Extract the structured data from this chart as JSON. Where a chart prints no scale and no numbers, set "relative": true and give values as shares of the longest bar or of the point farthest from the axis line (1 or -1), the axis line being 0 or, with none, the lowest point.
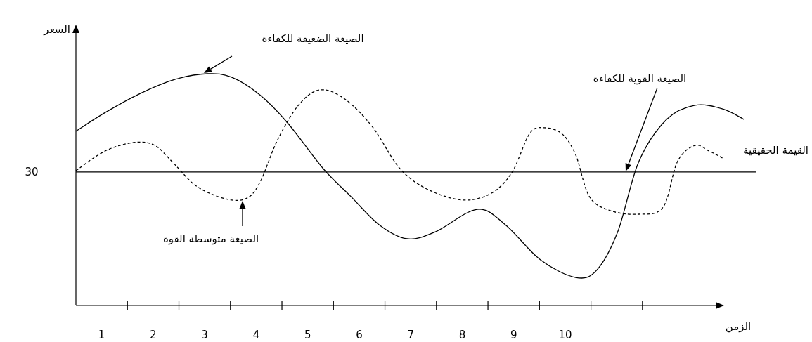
{
  "chart_data": {
    "type": "line",
    "relative": true,
    "xlabel": "الزمن",
    "ylabel": "السعر",
    "xlim": [
      0.5,
      13.7
    ],
    "xticks": [
      {
        "value": 1,
        "label": "1"
      },
      {
        "value": 2,
        "label": "2"
      },
      {
        "value": 3,
        "label": "3"
      },
      {
        "value": 4,
        "label": "4"
      },
      {
        "value": 5,
        "label": "5"
      },
      {
        "value": 6,
        "label": "6"
      },
      {
        "value": 7,
        "label": "7"
      },
      {
        "value": 8,
        "label": "8"
      },
      {
        "value": 9,
        "label": "9"
      },
      {
        "value": 10,
        "label": "10"
      },
      {
        "value": 1.5,
        "label": null
      },
      {
        "value": 2.5,
        "label": null
      },
      {
        "value": 3.5,
        "label": null
      },
      {
        "value": 4.5,
        "label": null
      },
      {
        "value": 5.5,
        "label": null
      },
      {
        "value": 6.5,
        "label": null
      },
      {
        "value": 7.5,
        "label": null
      },
      {
        "value": 8.5,
        "label": null
      },
      {
        "value": 9.5,
        "label": null
      },
      {
        "value": 10.5,
        "label": null
      },
      {
        "value": 11.5,
        "label": null
      }
    ],
    "series": [
      {
        "color": "#000000",
        "line_style": "solid",
        "x": [
          0.5,
          1.07,
          1.75,
          2.43,
          3.05,
          3.52,
          4.07,
          4.61,
          5.3,
          5.84,
          6.39,
          6.93,
          7.48,
          8.29,
          8.84,
          9.52,
          10.2,
          10.61,
          11.02,
          11.43,
          11.97,
          12.52,
          13.06,
          13.47
        ],
        "values": [
          0.752,
          0.833,
          0.915,
          0.976,
          1.0,
          0.985,
          0.909,
          0.788,
          0.591,
          0.47,
          0.348,
          0.288,
          0.318,
          0.415,
          0.348,
          0.197,
          0.121,
          0.152,
          0.318,
          0.621,
          0.803,
          0.864,
          0.848,
          0.803
        ]
      },
      {
        "color": "#000000",
        "line_style": "dashed",
        "x": [
          0.5,
          1.07,
          1.62,
          2.03,
          2.43,
          2.84,
          3.39,
          3.8,
          4.07,
          4.41,
          4.82,
          5.23,
          5.7,
          6.25,
          6.79,
          7.34,
          8.02,
          8.57,
          8.97,
          9.31,
          9.59,
          9.93,
          10.2,
          10.47,
          10.88,
          11.43,
          11.9,
          12.18,
          12.52,
          12.79,
          13.06
        ],
        "values": [
          0.582,
          0.667,
          0.703,
          0.691,
          0.606,
          0.515,
          0.461,
          0.461,
          0.53,
          0.712,
          0.864,
          0.93,
          0.894,
          0.773,
          0.591,
          0.5,
          0.455,
          0.485,
          0.576,
          0.742,
          0.767,
          0.742,
          0.652,
          0.47,
          0.409,
          0.394,
          0.424,
          0.621,
          0.691,
          0.667,
          0.636
        ]
      }
    ],
    "ref_lines": [
      {
        "axis": "y",
        "value": 0.576,
        "label": "القيمة الحقيقية",
        "color": "#000000"
      }
    ],
    "annotations": [
      "الصيغة الضعيفة للكفاءة",
      "الصيغة القوية للكفاءة",
      "الصيغة متوسطة القوة",
      "30"
    ]
  }
}
